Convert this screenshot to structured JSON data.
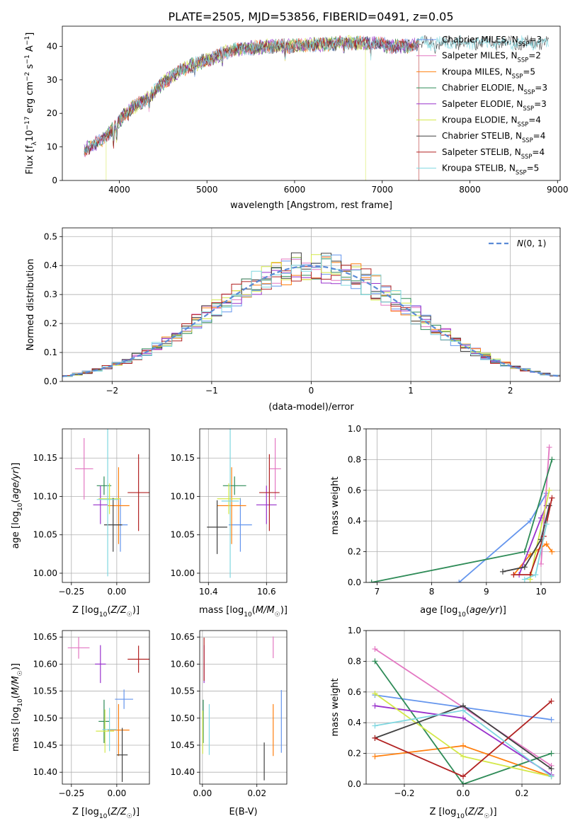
{
  "figure_title": "PLATE=2505, MJD=53856, FIBERID=0491, z=0.05",
  "colors": {
    "Chabrier MILES": "#6495ed",
    "Salpeter MILES": "#e377c2",
    "Kroupa MILES": "#ff7f0e",
    "Chabrier ELODIE": "#2e8b57",
    "Salpeter ELODIE": "#9932cc",
    "Kroupa ELODIE": "#d4e84a",
    "Chabrier STELIB": "#404040",
    "Salpeter STELIB": "#b22222",
    "Kroupa STELIB": "#7fd7e0"
  },
  "chart_data": [
    {
      "id": "spectrum",
      "type": "line",
      "title": "PLATE=2505, MJD=53856, FIBERID=0491, z=0.05",
      "xlabel": "wavelength [Angstrom, rest frame]",
      "ylabel": "Flux [f_λ10^-17 erg cm^-2 s^-1 A^-1]",
      "xlim": [
        3350,
        9030
      ],
      "ylim": [
        0,
        46
      ],
      "xticks": [
        4000,
        5000,
        6000,
        7000,
        8000,
        9000
      ],
      "yticks": [
        0,
        10,
        20,
        30,
        40
      ],
      "legend_position": "top-right",
      "series": [
        {
          "name": "Chabrier MILES",
          "nssp": "3"
        },
        {
          "name": "Salpeter MILES",
          "nssp": "2"
        },
        {
          "name": "Kroupa MILES",
          "nssp": "5"
        },
        {
          "name": "Chabrier ELODIE",
          "nssp": "3"
        },
        {
          "name": "Salpeter ELODIE",
          "nssp": "3"
        },
        {
          "name": "Kroupa ELODIE",
          "nssp": "4"
        },
        {
          "name": "Chabrier STELIB",
          "nssp": "4"
        },
        {
          "name": "Salpeter STELIB",
          "nssp": "4"
        },
        {
          "name": "Kroupa STELIB",
          "nssp": "5"
        }
      ],
      "continuum_x": [
        3600,
        3800,
        3950,
        4100,
        4300,
        4500,
        4700,
        4900,
        5100,
        5300,
        5500,
        5700,
        5900,
        6100,
        6300,
        6500,
        6700,
        6900,
        7100,
        7300,
        7420
      ],
      "continuum_y": [
        9,
        12,
        16,
        21,
        24,
        29,
        33,
        35,
        37,
        39,
        39.5,
        40,
        40,
        40.5,
        40.5,
        41,
        41,
        41,
        40,
        40,
        41
      ],
      "series_ranges": [
        [
          3600,
          7420
        ],
        [
          3600,
          7420
        ],
        [
          3600,
          7420
        ],
        [
          3600,
          7420
        ],
        [
          3600,
          7420
        ],
        [
          3850,
          6810
        ],
        [
          3600,
          8900
        ],
        [
          3600,
          7420
        ],
        [
          3600,
          8900
        ]
      ]
    },
    {
      "id": "residuals",
      "type": "line",
      "xlabel": "(data-model)/error",
      "ylabel": "Normed distribution",
      "xlim": [
        -2.5,
        2.5
      ],
      "ylim": [
        0,
        0.53
      ],
      "xticks": [
        -2,
        -1,
        0,
        1,
        2
      ],
      "yticks": [
        0.0,
        0.1,
        0.2,
        0.3,
        0.4,
        0.5
      ],
      "reference_curve": "N(0,1)",
      "legend_position": "top-right",
      "bin_width": 0.1
    },
    {
      "id": "age_vs_Z",
      "type": "scatter",
      "xlabel": "Z [log10(Z/Z☉)]",
      "ylabel": "age  [log10(age/yr)]",
      "xlim": [
        -0.3,
        0.18
      ],
      "ylim": [
        9.988,
        10.188
      ],
      "xticks": [
        -0.25,
        0.0
      ],
      "yticks": [
        10.0,
        10.05,
        10.1,
        10.15
      ],
      "points": [
        {
          "series": "Chabrier MILES",
          "x": 0.02,
          "y": 10.063,
          "xerr": 0.04,
          "yerr": 0.035
        },
        {
          "series": "Salpeter MILES",
          "x": -0.18,
          "y": 10.136,
          "xerr": 0.05,
          "yerr": 0.04
        },
        {
          "series": "Kroupa MILES",
          "x": 0.01,
          "y": 10.088,
          "xerr": 0.06,
          "yerr": 0.05
        },
        {
          "series": "Chabrier ELODIE",
          "x": -0.07,
          "y": 10.114,
          "xerr": 0.04,
          "yerr": 0.012
        },
        {
          "series": "Salpeter ELODIE",
          "x": -0.09,
          "y": 10.089,
          "xerr": 0.04,
          "yerr": 0.025
        },
        {
          "series": "Kroupa ELODIE",
          "x": -0.04,
          "y": 10.097,
          "xerr": 0.06,
          "yerr": 0.02
        },
        {
          "series": "Chabrier STELIB",
          "x": -0.02,
          "y": 10.063,
          "xerr": 0.05,
          "yerr": 0.035
        },
        {
          "series": "Salpeter STELIB",
          "x": 0.12,
          "y": 10.105,
          "xerr": 0.06,
          "yerr": 0.05
        },
        {
          "series": "Kroupa STELIB",
          "x": -0.05,
          "y": 10.096,
          "xerr": 0.06,
          "yerr": 0.1
        }
      ]
    },
    {
      "id": "age_vs_mass",
      "type": "scatter",
      "xlabel": "mass [log10(M/M☉)]",
      "ylabel": "",
      "xlim": [
        10.37,
        10.67
      ],
      "ylim": [
        9.988,
        10.188
      ],
      "xticks": [
        10.4,
        10.6
      ],
      "yticks": [
        10.0,
        10.05,
        10.1,
        10.15
      ],
      "points": [
        {
          "series": "Chabrier MILES",
          "x": 10.51,
          "y": 10.063,
          "xerr": 0.04,
          "yerr": 0.035
        },
        {
          "series": "Salpeter MILES",
          "x": 10.63,
          "y": 10.136,
          "xerr": 0.02,
          "yerr": 0.04
        },
        {
          "series": "Kroupa MILES",
          "x": 10.48,
          "y": 10.088,
          "xerr": 0.05,
          "yerr": 0.05
        },
        {
          "series": "Chabrier ELODIE",
          "x": 10.49,
          "y": 10.114,
          "xerr": 0.04,
          "yerr": 0.012
        },
        {
          "series": "Salpeter ELODIE",
          "x": 10.6,
          "y": 10.089,
          "xerr": 0.035,
          "yerr": 0.025
        },
        {
          "series": "Kroupa ELODIE",
          "x": 10.47,
          "y": 10.097,
          "xerr": 0.04,
          "yerr": 0.02
        },
        {
          "series": "Chabrier STELIB",
          "x": 10.43,
          "y": 10.06,
          "xerr": 0.035,
          "yerr": 0.035
        },
        {
          "series": "Salpeter STELIB",
          "x": 10.61,
          "y": 10.105,
          "xerr": 0.035,
          "yerr": 0.05
        },
        {
          "series": "Kroupa STELIB",
          "x": 10.475,
          "y": 10.094,
          "xerr": 0.03,
          "yerr": 0.1
        }
      ]
    },
    {
      "id": "weight_vs_age",
      "type": "line",
      "xlabel": "age  [log10(age/yr)]",
      "ylabel": "mass weight",
      "xlim": [
        6.8,
        10.35
      ],
      "ylim": [
        0,
        1
      ],
      "xticks": [
        7,
        8,
        9,
        10
      ],
      "yticks": [
        0.0,
        0.2,
        0.4,
        0.6,
        0.8,
        1.0
      ],
      "series": [
        {
          "name": "Chabrier MILES",
          "x": [
            8.5,
            9.8,
            10.1
          ],
          "y": [
            0.0,
            0.4,
            0.58
          ]
        },
        {
          "name": "Salpeter MILES",
          "x": [
            10.0,
            10.15
          ],
          "y": [
            0.12,
            0.88
          ]
        },
        {
          "name": "Kroupa MILES",
          "x": [
            9.5,
            9.8,
            10.1,
            10.2
          ],
          "y": [
            0.05,
            0.18,
            0.25,
            0.2
          ]
        },
        {
          "name": "Chabrier ELODIE",
          "x": [
            6.9,
            9.7,
            10.2
          ],
          "y": [
            0.0,
            0.2,
            0.8
          ]
        },
        {
          "name": "Salpeter ELODIE",
          "x": [
            9.6,
            10.0,
            10.1
          ],
          "y": [
            0.05,
            0.42,
            0.5
          ]
        },
        {
          "name": "Kroupa ELODIE",
          "x": [
            9.8,
            9.9,
            10.15
          ],
          "y": [
            0.02,
            0.2,
            0.6
          ]
        },
        {
          "name": "Chabrier STELIB",
          "x": [
            9.3,
            9.7,
            10.0,
            10.15
          ],
          "y": [
            0.07,
            0.1,
            0.28,
            0.5
          ]
        },
        {
          "name": "Salpeter STELIB",
          "x": [
            9.5,
            9.8,
            10.05,
            10.2
          ],
          "y": [
            0.05,
            0.05,
            0.3,
            0.55
          ]
        },
        {
          "name": "Kroupa STELIB",
          "x": [
            9.7,
            9.9,
            10.1
          ],
          "y": [
            0.02,
            0.05,
            0.38
          ]
        }
      ]
    },
    {
      "id": "mass_vs_Z",
      "type": "scatter",
      "xlabel": "Z [log10(Z/Z☉)]",
      "ylabel": "mass [log10(M/M☉)]",
      "xlim": [
        -0.3,
        0.18
      ],
      "ylim": [
        10.378,
        10.662
      ],
      "xticks": [
        -0.25,
        0.0
      ],
      "yticks": [
        10.4,
        10.45,
        10.5,
        10.55,
        10.6,
        10.65
      ],
      "points": [
        {
          "series": "Chabrier MILES",
          "x": 0.04,
          "y": 10.535,
          "xerr": 0.05,
          "yerr": 0.018
        },
        {
          "series": "Salpeter MILES",
          "x": -0.21,
          "y": 10.63,
          "xerr": 0.06,
          "yerr": 0.02
        },
        {
          "series": "Kroupa MILES",
          "x": 0.01,
          "y": 10.478,
          "xerr": 0.06,
          "yerr": 0.048
        },
        {
          "series": "Chabrier ELODIE",
          "x": -0.07,
          "y": 10.494,
          "xerr": 0.03,
          "yerr": 0.04
        },
        {
          "series": "Salpeter ELODIE",
          "x": -0.09,
          "y": 10.6,
          "xerr": 0.03,
          "yerr": 0.035
        },
        {
          "series": "Kroupa ELODIE",
          "x": -0.065,
          "y": 10.476,
          "xerr": 0.05,
          "yerr": 0.04
        },
        {
          "series": "Chabrier STELIB",
          "x": 0.03,
          "y": 10.432,
          "xerr": 0.03,
          "yerr": 0.05
        },
        {
          "series": "Salpeter STELIB",
          "x": 0.12,
          "y": 10.609,
          "xerr": 0.06,
          "yerr": 0.025
        },
        {
          "series": "Kroupa STELIB",
          "x": -0.04,
          "y": 10.479,
          "xerr": 0.04,
          "yerr": 0.04
        }
      ]
    },
    {
      "id": "mass_vs_EBV",
      "type": "scatter",
      "xlabel": "E(B-V)",
      "ylabel": "",
      "xlim": [
        -0.001,
        0.031
      ],
      "ylim": [
        10.378,
        10.662
      ],
      "xticks": [
        0.0,
        0.02
      ],
      "yticks": [
        10.4,
        10.45,
        10.5,
        10.55,
        10.6,
        10.65
      ],
      "points": [
        {
          "series": "Chabrier MILES",
          "x": 0.029,
          "y": 10.494,
          "xerr": 0,
          "yerr": 0.058
        },
        {
          "series": "Salpeter MILES",
          "x": 0.026,
          "y": 10.631,
          "xerr": 0,
          "yerr": 0.02
        },
        {
          "series": "Kroupa MILES",
          "x": 0.026,
          "y": 10.478,
          "xerr": 0,
          "yerr": 0.048
        },
        {
          "series": "Chabrier ELODIE",
          "x": 0.0003,
          "y": 10.494,
          "xerr": 0,
          "yerr": 0.04
        },
        {
          "series": "Salpeter ELODIE",
          "x": 0.0006,
          "y": 10.6,
          "xerr": 0,
          "yerr": 0.035
        },
        {
          "series": "Kroupa ELODIE",
          "x": 0.0001,
          "y": 10.474,
          "xerr": 0,
          "yerr": 0.04
        },
        {
          "series": "Chabrier STELIB",
          "x": 0.0227,
          "y": 10.42,
          "xerr": 0,
          "yerr": 0.035
        },
        {
          "series": "Salpeter STELIB",
          "x": 0.0006,
          "y": 10.609,
          "xerr": 0,
          "yerr": 0.04
        },
        {
          "series": "Kroupa STELIB",
          "x": 0.0025,
          "y": 10.479,
          "xerr": 0,
          "yerr": 0.047
        }
      ]
    },
    {
      "id": "weight_vs_Z",
      "type": "line",
      "xlabel": "Z [log10(Z/Z☉)]",
      "ylabel": "mass weight",
      "xlim": [
        -0.33,
        0.33
      ],
      "ylim": [
        0,
        1
      ],
      "xticks": [
        -0.2,
        0.0,
        0.2
      ],
      "yticks": [
        0.0,
        0.2,
        0.4,
        0.6,
        0.8,
        1.0
      ],
      "series": [
        {
          "name": "Chabrier MILES",
          "x": [
            -0.3,
            0.0,
            0.3
          ],
          "y": [
            0.58,
            0.5,
            0.42
          ]
        },
        {
          "name": "Salpeter MILES",
          "x": [
            -0.3,
            0.0,
            0.3
          ],
          "y": [
            0.88,
            0.5,
            0.12
          ]
        },
        {
          "name": "Kroupa MILES",
          "x": [
            -0.3,
            0.0,
            0.3
          ],
          "y": [
            0.18,
            0.25,
            0.05
          ]
        },
        {
          "name": "Chabrier ELODIE",
          "x": [
            -0.3,
            0.0,
            0.3
          ],
          "y": [
            0.8,
            0.0,
            0.2
          ]
        },
        {
          "name": "Salpeter ELODIE",
          "x": [
            -0.3,
            0.0,
            0.3
          ],
          "y": [
            0.51,
            0.43,
            0.06
          ]
        },
        {
          "name": "Kroupa ELODIE",
          "x": [
            -0.3,
            0.0,
            0.3
          ],
          "y": [
            0.59,
            0.18,
            0.05
          ]
        },
        {
          "name": "Chabrier STELIB",
          "x": [
            -0.3,
            0.0,
            0.3
          ],
          "y": [
            0.3,
            0.51,
            0.1
          ]
        },
        {
          "name": "Salpeter STELIB",
          "x": [
            -0.3,
            0.0,
            0.3
          ],
          "y": [
            0.3,
            0.05,
            0.54
          ]
        },
        {
          "name": "Kroupa STELIB",
          "x": [
            -0.3,
            0.0,
            0.3
          ],
          "y": [
            0.38,
            0.48,
            0.05
          ]
        }
      ]
    }
  ]
}
